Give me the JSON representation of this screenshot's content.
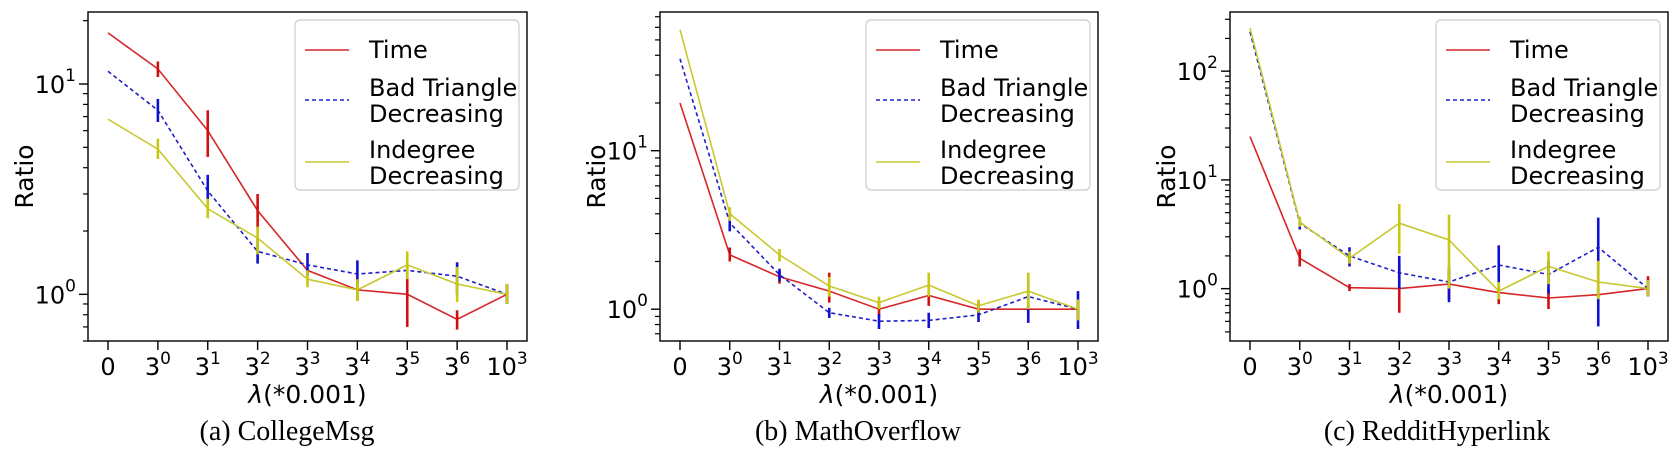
{
  "figure": {
    "captions": [
      "(a) CollegeMsg",
      "(b) MathOverflow",
      "(c) RedditHyperlink"
    ]
  },
  "colors": {
    "time": "#d62728",
    "bad_triangle_line": "#1f1fc8",
    "indegree": "#c8c832",
    "errbar_time": "#d01010",
    "errbar_bad": "#1010d0",
    "errbar_indegree": "#c8c810"
  },
  "chart_data": [
    {
      "type": "line",
      "yscale": "log",
      "caption": "(a) CollegeMsg",
      "xlabel": "λ(*0.001)",
      "ylabel": "Ratio",
      "categories": [
        "0",
        "3^0",
        "3^1",
        "3^2",
        "3^3",
        "3^4",
        "3^5",
        "3^6",
        "10^3"
      ],
      "ylim": [
        0.6,
        22
      ],
      "yticks": [
        {
          "value": 1,
          "base": "10",
          "exp": "0"
        },
        {
          "value": 10,
          "base": "10",
          "exp": "1"
        }
      ],
      "legend": "top-right",
      "series": [
        {
          "name": "Time",
          "key": "time",
          "style": "solid",
          "values": [
            17.5,
            11.8,
            6.0,
            2.5,
            1.3,
            1.05,
            1.0,
            0.76,
            1.0
          ],
          "errors": [
            null,
            [
              10.8,
              12.8
            ],
            [
              4.5,
              7.5
            ],
            [
              2.05,
              3.0
            ],
            null,
            [
              0.93,
              1.18
            ],
            [
              0.7,
              1.35
            ],
            [
              0.68,
              0.84
            ],
            [
              0.9,
              1.12
            ]
          ]
        },
        {
          "name": "Bad Triangle\nDecreasing",
          "key": "bad",
          "style": "dashed",
          "values": [
            11.5,
            7.5,
            3.1,
            1.6,
            1.38,
            1.25,
            1.3,
            1.22,
            1.0
          ],
          "errors": [
            null,
            [
              6.6,
              8.5
            ],
            [
              2.6,
              3.7
            ],
            [
              1.4,
              1.85
            ],
            [
              1.22,
              1.57
            ],
            [
              1.12,
              1.45
            ],
            null,
            [
              1.0,
              1.42
            ],
            [
              0.9,
              1.12
            ]
          ]
        },
        {
          "name": "Indegree\nDecreasing",
          "key": "indegree",
          "style": "solid",
          "values": [
            6.8,
            4.9,
            2.55,
            1.85,
            1.18,
            1.05,
            1.38,
            1.12,
            1.0
          ],
          "errors": [
            null,
            [
              4.4,
              5.5
            ],
            [
              2.3,
              2.85
            ],
            [
              1.55,
              2.1
            ],
            [
              1.08,
              1.3
            ],
            [
              0.93,
              1.18
            ],
            [
              1.18,
              1.6
            ],
            [
              0.92,
              1.35
            ],
            [
              0.9,
              1.12
            ]
          ]
        }
      ]
    },
    {
      "type": "line",
      "yscale": "log",
      "caption": "(b) MathOverflow",
      "xlabel": "λ(*0.001)",
      "ylabel": "Ratio",
      "categories": [
        "0",
        "3^0",
        "3^1",
        "3^2",
        "3^3",
        "3^4",
        "3^5",
        "3^6",
        "10^3"
      ],
      "ylim": [
        0.63,
        75
      ],
      "yticks": [
        {
          "value": 1,
          "base": "10",
          "exp": "0"
        },
        {
          "value": 10,
          "base": "10",
          "exp": "1"
        }
      ],
      "legend": "top-right",
      "series": [
        {
          "name": "Time",
          "key": "time",
          "style": "solid",
          "values": [
            20.0,
            2.2,
            1.6,
            1.3,
            1.0,
            1.22,
            1.0,
            1.0,
            1.0
          ],
          "errors": [
            null,
            [
              2.0,
              2.45
            ],
            [
              1.45,
              1.75
            ],
            [
              1.1,
              1.7
            ],
            [
              0.9,
              1.1
            ],
            [
              1.05,
              1.4
            ],
            [
              0.92,
              1.12
            ],
            [
              0.92,
              1.1
            ],
            [
              0.85,
              1.15
            ]
          ]
        },
        {
          "name": "Bad Triangle\nDecreasing",
          "key": "bad",
          "style": "dashed",
          "values": [
            38.0,
            3.5,
            1.65,
            0.95,
            0.84,
            0.85,
            0.92,
            1.2,
            1.0
          ],
          "errors": [
            null,
            [
              3.1,
              4.0
            ],
            [
              1.5,
              1.8
            ],
            [
              0.88,
              1.02
            ],
            [
              0.75,
              0.93
            ],
            [
              0.76,
              0.95
            ],
            [
              0.83,
              1.0
            ],
            [
              0.82,
              1.55
            ],
            [
              0.75,
              1.3
            ]
          ]
        },
        {
          "name": "Indegree\nDecreasing",
          "key": "indegree",
          "style": "solid",
          "values": [
            58.0,
            4.0,
            2.2,
            1.4,
            1.1,
            1.42,
            1.05,
            1.3,
            1.0
          ],
          "errors": [
            null,
            [
              3.6,
              4.4
            ],
            [
              2.0,
              2.4
            ],
            [
              1.2,
              1.6
            ],
            [
              1.0,
              1.2
            ],
            [
              1.2,
              1.7
            ],
            [
              0.95,
              1.15
            ],
            [
              1.0,
              1.7
            ],
            [
              0.85,
              1.15
            ]
          ]
        }
      ]
    },
    {
      "type": "line",
      "yscale": "log",
      "caption": "(c) RedditHyperlink",
      "xlabel": "λ(*0.001)",
      "ylabel": "Ratio",
      "categories": [
        "0",
        "3^0",
        "3^1",
        "3^2",
        "3^3",
        "3^4",
        "3^5",
        "3^6",
        "10^3"
      ],
      "ylim": [
        0.33,
        350
      ],
      "yticks": [
        {
          "value": 1,
          "base": "10",
          "exp": "0"
        },
        {
          "value": 10,
          "base": "10",
          "exp": "1"
        },
        {
          "value": 100,
          "base": "10",
          "exp": "2"
        }
      ],
      "legend": "top-right",
      "series": [
        {
          "name": "Time",
          "key": "time",
          "style": "solid",
          "values": [
            25.0,
            1.9,
            1.02,
            1.0,
            1.1,
            0.92,
            0.82,
            0.88,
            1.0
          ],
          "errors": [
            null,
            [
              1.6,
              2.3
            ],
            [
              0.95,
              1.1
            ],
            [
              0.6,
              1.7
            ],
            [
              0.8,
              1.45
            ],
            [
              0.72,
              1.1
            ],
            [
              0.65,
              1.0
            ],
            [
              0.75,
              1.0
            ],
            [
              0.85,
              1.3
            ]
          ]
        },
        {
          "name": "Bad Triangle\nDecreasing",
          "key": "bad",
          "style": "dashed",
          "values": [
            230.0,
            4.0,
            2.0,
            1.4,
            1.15,
            1.65,
            1.35,
            2.4,
            1.0
          ],
          "errors": [
            null,
            [
              3.5,
              4.5
            ],
            [
              1.6,
              2.4
            ],
            [
              1.0,
              2.0
            ],
            [
              0.75,
              1.6
            ],
            [
              1.1,
              2.5
            ],
            [
              0.9,
              1.8
            ],
            [
              0.45,
              4.5
            ],
            [
              0.85,
              1.2
            ]
          ]
        },
        {
          "name": "Indegree\nDecreasing",
          "key": "indegree",
          "style": "solid",
          "values": [
            250.0,
            4.1,
            1.9,
            4.0,
            2.8,
            0.95,
            1.6,
            1.15,
            1.0
          ],
          "errors": [
            null,
            [
              3.7,
              4.6
            ],
            [
              1.7,
              2.2
            ],
            [
              2.1,
              6.0
            ],
            [
              1.0,
              4.8
            ],
            [
              0.8,
              1.15
            ],
            [
              1.1,
              2.2
            ],
            [
              0.8,
              1.8
            ],
            [
              0.85,
              1.2
            ]
          ]
        }
      ]
    }
  ]
}
